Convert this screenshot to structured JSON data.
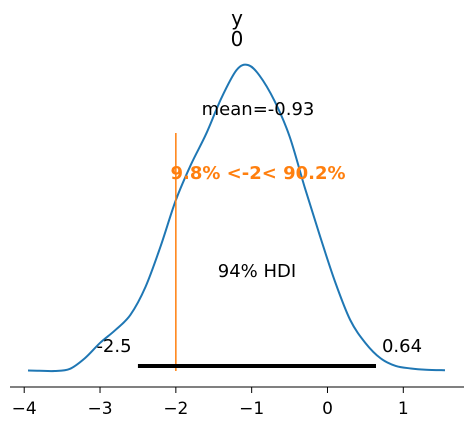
{
  "chart_data": {
    "type": "line",
    "title": "y",
    "subtitle": "0",
    "xlabel": "",
    "ylabel": "",
    "xlim": [
      -4.25,
      1.85
    ],
    "xticks": [
      -4,
      -3,
      -2,
      -1,
      0,
      1
    ],
    "xtick_labels": [
      "−4",
      "−3",
      "−2",
      "−1",
      "0",
      "1"
    ],
    "grid": false,
    "series": [
      {
        "color": "#1f77b4",
        "x": [
          -3.95,
          -3.8,
          -3.6,
          -3.4,
          -3.2,
          -3.0,
          -2.8,
          -2.6,
          -2.4,
          -2.2,
          -2.0,
          -1.8,
          -1.6,
          -1.4,
          -1.2,
          -1.05,
          -0.9,
          -0.7,
          -0.5,
          -0.3,
          -0.1,
          0.1,
          0.3,
          0.5,
          0.7,
          0.9,
          1.1,
          1.3,
          1.55
        ],
        "density": [
          0.002,
          0.001,
          0.0,
          0.008,
          0.05,
          0.11,
          0.16,
          0.22,
          0.33,
          0.49,
          0.67,
          0.81,
          0.93,
          1.07,
          1.18,
          1.2,
          1.16,
          1.06,
          0.92,
          0.72,
          0.53,
          0.35,
          0.2,
          0.11,
          0.05,
          0.02,
          0.01,
          0.005,
          0.003
        ]
      }
    ],
    "mean_label": "mean=-0.93",
    "reference": {
      "value": -2,
      "label": "9.8% <-2< 90.2%",
      "color": "#ff7f0e"
    },
    "hdi": {
      "label": "94% HDI",
      "low": -2.5,
      "high": 0.64,
      "low_label": "-2.5",
      "high_label": "0.64"
    }
  }
}
